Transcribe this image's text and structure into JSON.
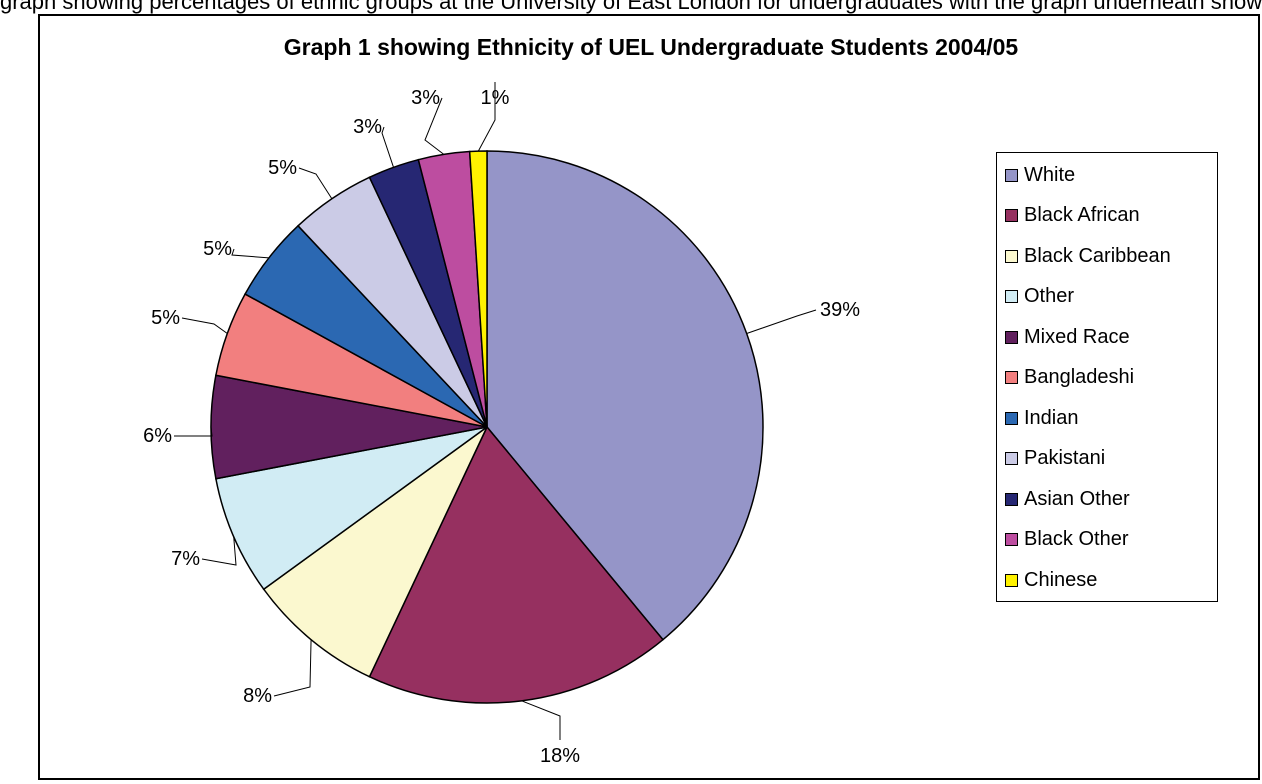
{
  "page_fragment": "graph showing percentages of ethnic groups at the University of East London for undergraduates with the graph underneath showing",
  "chart_data": {
    "type": "pie",
    "title": "Graph 1 showing Ethnicity of UEL Undergraduate Students 2004/05",
    "slices": [
      {
        "label": "White",
        "value": 39,
        "display": "39%",
        "color": "#9595c8"
      },
      {
        "label": "Black African",
        "value": 18,
        "display": "18%",
        "color": "#963060"
      },
      {
        "label": "Black Caribbean",
        "value": 8,
        "display": "8%",
        "color": "#fbf8cf"
      },
      {
        "label": "Other",
        "value": 7,
        "display": "7%",
        "color": "#d1ecf4"
      },
      {
        "label": "Mixed Race",
        "value": 6,
        "display": "6%",
        "color": "#61205e"
      },
      {
        "label": "Bangladeshi",
        "value": 5,
        "display": "5%",
        "color": "#f27f7f"
      },
      {
        "label": "Indian",
        "value": 5,
        "display": "5%",
        "color": "#2b68b2"
      },
      {
        "label": "Pakistani",
        "value": 5,
        "display": "5%",
        "color": "#cbcbe6"
      },
      {
        "label": "Asian Other",
        "value": 3,
        "display": "3%",
        "color": "#262773"
      },
      {
        "label": "Black Other",
        "value": 3,
        "display": "3%",
        "color": "#bd4da0"
      },
      {
        "label": "Chinese",
        "value": 1,
        "display": "1%",
        "color": "#fff200"
      }
    ],
    "start_angle": "12 o'clock",
    "direction": "clockwise",
    "legend_position": "right"
  }
}
